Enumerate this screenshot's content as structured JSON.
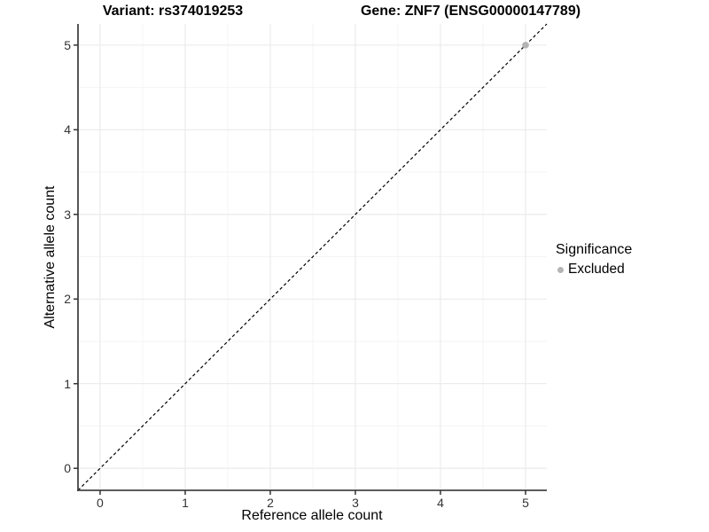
{
  "titles": {
    "left": "Variant: rs374019253",
    "right": "Gene: ZNF7 (ENSG00000147789)"
  },
  "colors": {
    "background": "#ffffff",
    "major_grid": "#e9e9e9",
    "minor_grid": "#f4f4f4",
    "axis_line": "#444444",
    "tick_mark": "#333333",
    "tick_text": "#333333",
    "reference_line": "#000000",
    "excluded_point": "#b4b4b4"
  },
  "chart_data": {
    "type": "scatter",
    "title_left": "Variant: rs374019253",
    "title_right": "Gene: ZNF7 (ENSG00000147789)",
    "xlabel": "Reference allele count",
    "ylabel": "Alternative allele count",
    "xlim": [
      -0.26,
      5.25
    ],
    "ylim": [
      -0.26,
      5.25
    ],
    "x_ticks": [
      0,
      1,
      2,
      3,
      4,
      5
    ],
    "y_ticks": [
      0,
      1,
      2,
      3,
      4,
      5
    ],
    "minor_grid_step": 0.5,
    "grid": true,
    "reference_line": {
      "type": "identity",
      "slope": 1,
      "intercept": 0,
      "style": "dashed"
    },
    "series": [
      {
        "name": "Excluded",
        "points": [
          {
            "x": 5,
            "y": 5
          }
        ]
      }
    ],
    "legend": {
      "title": "Significance",
      "position": "right",
      "items": [
        {
          "label": "Excluded"
        }
      ]
    }
  }
}
